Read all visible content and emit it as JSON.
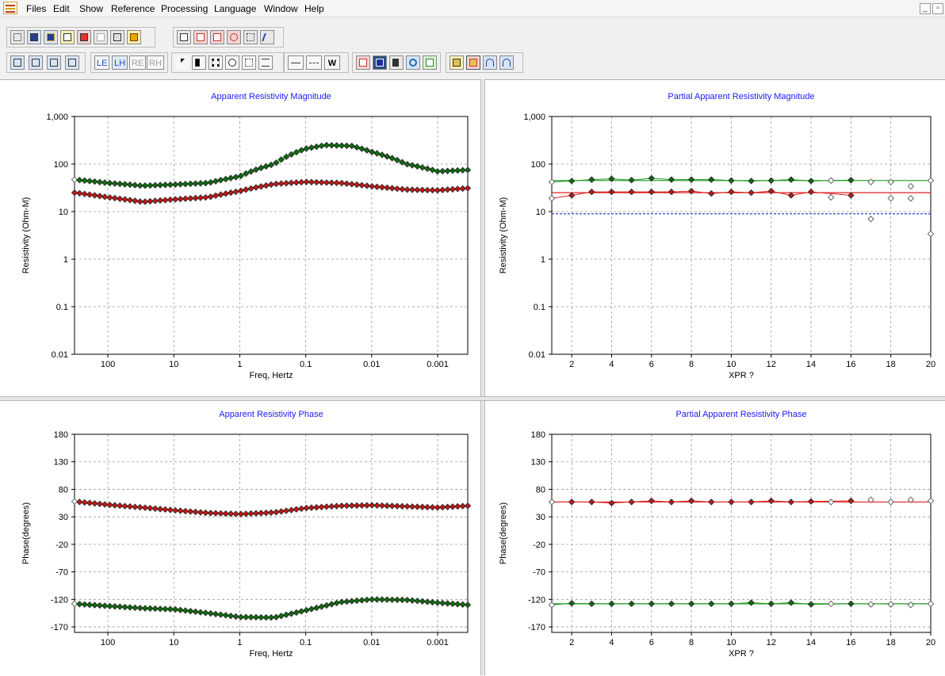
{
  "menubar": {
    "items": [
      "Files",
      "Edit",
      "Show",
      "Reference",
      "Processing",
      "Language",
      "Window",
      "Help"
    ],
    "window_controls": [
      "_",
      "▫"
    ]
  },
  "toolbar": {
    "row1_icons": [
      "new-icon",
      "save-icon",
      "save-as-icon",
      "print-preview-icon",
      "export-icon",
      "copy-icon",
      "print-icon",
      "exit-icon",
      "table-icon",
      "chart-icon",
      "chart-edit-icon",
      "plot-settings-icon",
      "legend-icon",
      "pen-icon"
    ],
    "row2_nav_icons": [
      "first-icon",
      "prev-icon",
      "next-icon",
      "last-icon"
    ],
    "mode_buttons": [
      {
        "label": "LE",
        "state": "normal"
      },
      {
        "label": "LH",
        "state": "pressed"
      },
      {
        "label": "RE",
        "state": "disabled"
      },
      {
        "label": "RH",
        "state": "disabled"
      }
    ],
    "row2_tool_icons": [
      "pointer-icon",
      "hand-icon",
      "columns-icon",
      "target-icon",
      "select-rect-icon",
      "lines-icon",
      "solid-line-icon",
      "dashed-line-icon",
      "weight-icon",
      "graph-icon",
      "monitor-icon",
      "calculator-icon",
      "refresh-icon",
      "check-icon",
      "tools-icon",
      "tools-active-icon",
      "undo-icon",
      "redo-icon"
    ],
    "weight_label": "W"
  },
  "colors": {
    "green": "#1f9a1f",
    "red": "#e02020",
    "marker_green": "#0f6b0f",
    "marker_red": "#c01818",
    "grid": "#9a9a9a",
    "title": "#1a1aff",
    "blue_ref": "#2a45d8"
  },
  "chart_data": [
    {
      "id": "arm",
      "type": "scatter",
      "title": "Apparent Resistivity Magnitude",
      "xlabel": "Freq, Hertz",
      "ylabel": "Resistivity (Ohm-M)",
      "xscale": "log-reversed",
      "xlim": [
        320,
        0.00035
      ],
      "yscale": "log",
      "ylim": [
        0.01,
        1000
      ],
      "xticks": [
        100,
        10,
        1,
        0.1,
        0.01,
        0.001
      ],
      "xtick_labels": [
        "100",
        "10",
        "1",
        "0.1",
        "0.01",
        "0.001"
      ],
      "yticks": [
        0.01,
        0.1,
        1,
        10,
        100,
        1000
      ],
      "ytick_labels": [
        "0.01",
        "0.1",
        "1",
        "10",
        "100",
        "1,000"
      ],
      "grid": true,
      "profiles": [
        {
          "color": "green",
          "ctrl": [
            [
              320,
              47
            ],
            [
              100,
              40
            ],
            [
              30,
              35
            ],
            [
              10,
              37
            ],
            [
              3,
              40
            ],
            [
              1,
              55
            ],
            [
              0.3,
              100
            ],
            [
              0.1,
              210
            ],
            [
              0.05,
              250
            ],
            [
              0.02,
              240
            ],
            [
              0.01,
              180
            ],
            [
              0.003,
              100
            ],
            [
              0.001,
              70
            ],
            [
              0.00035,
              75
            ]
          ],
          "first_hollow": true
        },
        {
          "color": "red",
          "ctrl": [
            [
              320,
              25
            ],
            [
              100,
              20
            ],
            [
              30,
              16
            ],
            [
              10,
              18
            ],
            [
              3,
              20
            ],
            [
              1,
              27
            ],
            [
              0.3,
              38
            ],
            [
              0.1,
              42
            ],
            [
              0.03,
              40
            ],
            [
              0.01,
              34
            ],
            [
              0.003,
              29
            ],
            [
              0.001,
              28
            ],
            [
              0.00035,
              31
            ]
          ],
          "first_hollow": false
        }
      ]
    },
    {
      "id": "parm",
      "type": "scatter",
      "title": "Partial Apparent Resistivity Magnitude",
      "xlabel": "XPR ?",
      "ylabel": "Resistivity (Ohm-M)",
      "xscale": "linear",
      "xlim": [
        1,
        20
      ],
      "yscale": "log",
      "ylim": [
        0.01,
        1000
      ],
      "xticks": [
        2,
        4,
        6,
        8,
        10,
        12,
        14,
        16,
        18,
        20
      ],
      "yticks": [
        0.01,
        0.1,
        1,
        10,
        100,
        1000
      ],
      "ytick_labels": [
        "0.01",
        "0.1",
        "1",
        "10",
        "100",
        "1,000"
      ],
      "grid": true,
      "reference_lines": [
        {
          "color": "green",
          "y": 45
        },
        {
          "color": "red",
          "y": 25
        },
        {
          "color": "blue_ref",
          "y": 9,
          "dashed": true
        }
      ],
      "series": [
        {
          "name": "",
          "color": "green",
          "x": [
            1,
            2,
            3,
            4,
            5,
            6,
            7,
            8,
            9,
            10,
            11,
            12,
            13,
            14,
            15,
            16,
            17,
            18,
            19,
            20
          ],
          "y": [
            42,
            44,
            47,
            49,
            46,
            50,
            47,
            47,
            47,
            45,
            44,
            45,
            47,
            44,
            45,
            46,
            42,
            42,
            34,
            45
          ],
          "hollow": [
            1,
            15,
            17,
            18,
            19,
            20
          ]
        },
        {
          "name": "",
          "color": "red",
          "x": [
            1,
            2,
            3,
            4,
            5,
            6,
            7,
            8,
            9,
            10,
            11,
            12,
            13,
            14,
            15,
            16,
            17,
            18,
            19,
            20
          ],
          "y": [
            19,
            22,
            26,
            26,
            26,
            26,
            26,
            27,
            24,
            26,
            25,
            27,
            22,
            26,
            20,
            22,
            7,
            19,
            19,
            3.4
          ],
          "hollow": [
            1,
            15,
            17,
            18,
            19,
            20
          ]
        }
      ]
    },
    {
      "id": "arp",
      "type": "scatter",
      "title": "Apparent Resistivity Phase",
      "xlabel": "Freq, Hertz",
      "ylabel": "Phase(degrees)",
      "xscale": "log-reversed",
      "xlim": [
        320,
        0.00035
      ],
      "yscale": "linear",
      "ylim": [
        -180,
        180
      ],
      "xticks": [
        100,
        10,
        1,
        0.1,
        0.01,
        0.001
      ],
      "xtick_labels": [
        "100",
        "10",
        "1",
        "0.1",
        "0.01",
        "0.001"
      ],
      "yticks": [
        -170,
        -120,
        -70,
        -20,
        30,
        80,
        130,
        180
      ],
      "grid": true,
      "profiles": [
        {
          "color": "red",
          "ctrl": [
            [
              320,
              58
            ],
            [
              100,
              52
            ],
            [
              30,
              47
            ],
            [
              10,
              42
            ],
            [
              3,
              37
            ],
            [
              1,
              35
            ],
            [
              0.3,
              38
            ],
            [
              0.1,
              46
            ],
            [
              0.03,
              50
            ],
            [
              0.01,
              51
            ],
            [
              0.003,
              49
            ],
            [
              0.001,
              47
            ],
            [
              0.00035,
              50
            ]
          ],
          "first_hollow": true
        },
        {
          "color": "green",
          "ctrl": [
            [
              320,
              -128
            ],
            [
              100,
              -132
            ],
            [
              30,
              -136
            ],
            [
              10,
              -138
            ],
            [
              3,
              -145
            ],
            [
              1,
              -152
            ],
            [
              0.3,
              -153
            ],
            [
              0.1,
              -140
            ],
            [
              0.03,
              -125
            ],
            [
              0.01,
              -120
            ],
            [
              0.003,
              -121
            ],
            [
              0.001,
              -126
            ],
            [
              0.00035,
              -130
            ]
          ],
          "first_hollow": true
        }
      ]
    },
    {
      "id": "parp",
      "type": "scatter",
      "title": "Partial Apparent Resistivity Phase",
      "xlabel": "XPR ?",
      "ylabel": "Phase(degrees)",
      "xscale": "linear",
      "xlim": [
        1,
        20
      ],
      "yscale": "linear",
      "ylim": [
        -180,
        180
      ],
      "xticks": [
        2,
        4,
        6,
        8,
        10,
        12,
        14,
        16,
        18,
        20
      ],
      "yticks": [
        -170,
        -120,
        -70,
        -20,
        30,
        80,
        130,
        180
      ],
      "grid": true,
      "reference_lines": [
        {
          "color": "red",
          "y": 57
        },
        {
          "color": "green",
          "y": -128
        }
      ],
      "series": [
        {
          "name": "",
          "color": "red",
          "x": [
            1,
            2,
            3,
            4,
            5,
            6,
            7,
            8,
            9,
            10,
            11,
            12,
            13,
            14,
            15,
            16,
            17,
            18,
            19,
            20
          ],
          "y": [
            57,
            57,
            57,
            55,
            57,
            59,
            57,
            59,
            57,
            57,
            57,
            59,
            57,
            58,
            57,
            59,
            61,
            57,
            61,
            59
          ],
          "hollow": [
            1,
            15,
            17,
            18,
            19,
            20
          ]
        },
        {
          "name": "",
          "color": "green",
          "x": [
            1,
            2,
            3,
            4,
            5,
            6,
            7,
            8,
            9,
            10,
            11,
            12,
            13,
            14,
            15,
            16,
            17,
            18,
            19,
            20
          ],
          "y": [
            -130,
            -127,
            -128,
            -128,
            -128,
            -128,
            -128,
            -128,
            -128,
            -128,
            -126,
            -128,
            -126,
            -129,
            -128,
            -128,
            -129,
            -129,
            -130,
            -128
          ],
          "hollow": [
            1,
            15,
            17,
            18,
            19,
            20
          ]
        }
      ]
    }
  ]
}
